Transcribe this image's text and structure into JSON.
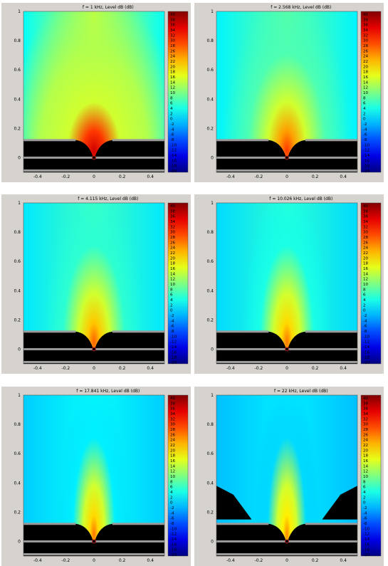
{
  "chart_data": [
    {
      "type": "heatmap",
      "title": "f = 1 kHz, Level dB  (dB)",
      "beam": 0,
      "x_ticks": [
        "-0.4",
        "-0.2",
        "0",
        "0.2",
        "0.4"
      ],
      "y_ticks": [
        "0",
        "0.2",
        "0.4",
        "0.6",
        "0.8",
        "1"
      ],
      "xlim": [
        -0.5,
        0.5
      ],
      "ylim": [
        -0.1,
        1.0
      ],
      "colorbar": {
        "min": -20,
        "max": 40,
        "labels": [
          "40",
          "38",
          "36",
          "34",
          "32",
          "30",
          "28",
          "26",
          "24",
          "22",
          "20",
          "18",
          "16",
          "14",
          "12",
          "10",
          "8",
          "6",
          "4",
          "2",
          "0",
          "-2",
          "-4",
          "-6",
          "-8",
          "-10",
          "-12",
          "-14",
          "-16",
          "-18",
          "-20"
        ]
      }
    },
    {
      "type": "heatmap",
      "title": "f = 2.568 kHz, Level dB  (dB)",
      "beam": 1,
      "x_ticks": [
        "-0.4",
        "-0.2",
        "0",
        "0.2",
        "0.4"
      ],
      "y_ticks": [
        "0",
        "0.2",
        "0.4",
        "0.6",
        "0.8",
        "1"
      ],
      "xlim": [
        -0.5,
        0.5
      ],
      "ylim": [
        -0.1,
        1.0
      ],
      "colorbar": {
        "min": -20,
        "max": 40,
        "labels": [
          "40",
          "38",
          "36",
          "34",
          "32",
          "30",
          "28",
          "26",
          "24",
          "22",
          "20",
          "18",
          "16",
          "14",
          "12",
          "10",
          "8",
          "6",
          "4",
          "2",
          "0",
          "-2",
          "-4",
          "-6",
          "-8",
          "-10",
          "-12",
          "-14",
          "-16",
          "-18",
          "-20"
        ]
      }
    },
    {
      "type": "heatmap",
      "title": "f = 4.115 kHz, Level dB  (dB)",
      "beam": 2,
      "x_ticks": [
        "-0.4",
        "-0.2",
        "0",
        "0.2",
        "0.4"
      ],
      "y_ticks": [
        "0",
        "0.2",
        "0.4",
        "0.6",
        "0.8",
        "1"
      ],
      "xlim": [
        -0.5,
        0.5
      ],
      "ylim": [
        -0.1,
        1.0
      ],
      "colorbar": {
        "min": -20,
        "max": 40,
        "labels": [
          "40",
          "38",
          "36",
          "34",
          "32",
          "30",
          "28",
          "26",
          "24",
          "22",
          "20",
          "18",
          "16",
          "14",
          "12",
          "10",
          "8",
          "6",
          "4",
          "2",
          "0",
          "-2",
          "-4",
          "-6",
          "-8",
          "-10",
          "-12",
          "-14",
          "-16",
          "-18",
          "-20"
        ]
      }
    },
    {
      "type": "heatmap",
      "title": "f = 10.026 kHz, Level dB  (dB)",
      "beam": 3,
      "x_ticks": [
        "-0.4",
        "-0.2",
        "0",
        "0.2",
        "0.4"
      ],
      "y_ticks": [
        "0",
        "0.2",
        "0.4",
        "0.6",
        "0.8",
        "1"
      ],
      "xlim": [
        -0.5,
        0.5
      ],
      "ylim": [
        -0.1,
        1.0
      ],
      "colorbar": {
        "min": -20,
        "max": 40,
        "labels": [
          "40",
          "38",
          "36",
          "34",
          "32",
          "30",
          "28",
          "26",
          "24",
          "22",
          "20",
          "18",
          "16",
          "14",
          "12",
          "10",
          "8",
          "6",
          "4",
          "2",
          "0",
          "-2",
          "-4",
          "-6",
          "-8",
          "-10",
          "-12",
          "-14",
          "-16",
          "-18",
          "-20"
        ]
      }
    },
    {
      "type": "heatmap",
      "title": "f = 17.841 kHz, Level dB  (dB)",
      "beam": 4,
      "x_ticks": [
        "-0.4",
        "-0.2",
        "0",
        "0.2",
        "0.4"
      ],
      "y_ticks": [
        "0",
        "0.2",
        "0.4",
        "0.6",
        "0.8",
        "1"
      ],
      "xlim": [
        -0.5,
        0.5
      ],
      "ylim": [
        -0.1,
        1.0
      ],
      "colorbar": {
        "min": -20,
        "max": 40,
        "labels": [
          "40",
          "38",
          "36",
          "34",
          "32",
          "30",
          "28",
          "26",
          "24",
          "22",
          "20",
          "18",
          "16",
          "14",
          "12",
          "10",
          "8",
          "6",
          "4",
          "2",
          "0",
          "-2",
          "-4",
          "-6",
          "-8",
          "-10",
          "-12",
          "-14",
          "-16",
          "-18",
          "-20"
        ]
      }
    },
    {
      "type": "heatmap",
      "title": "f = 22 kHz, Level dB  (dB)",
      "beam": 5,
      "x_ticks": [
        "-0.4",
        "-0.2",
        "0",
        "0.2",
        "0.4"
      ],
      "y_ticks": [
        "0",
        "0.2",
        "0.4",
        "0.6",
        "0.8",
        "1"
      ],
      "xlim": [
        -0.5,
        0.5
      ],
      "ylim": [
        -0.1,
        1.0
      ],
      "colorbar": {
        "min": -20,
        "max": 40,
        "labels": [
          "40",
          "38",
          "36",
          "34",
          "32",
          "30",
          "28",
          "26",
          "24",
          "22",
          "20",
          "18",
          "16",
          "14",
          "12",
          "10",
          "8",
          "6",
          "4",
          "2",
          "0",
          "-2",
          "-4",
          "-6",
          "-8",
          "-10",
          "-12",
          "-14",
          "-16",
          "-18",
          "-20"
        ]
      }
    }
  ]
}
